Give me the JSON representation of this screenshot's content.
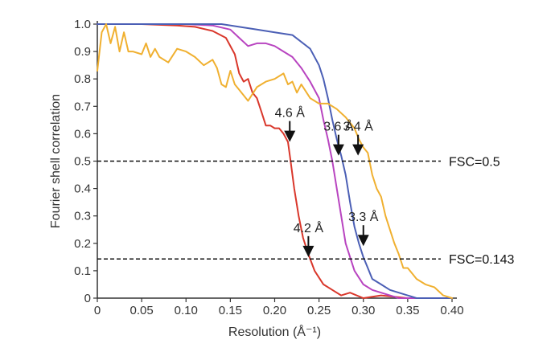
{
  "chart_data": {
    "type": "line",
    "xlabel": "Resolution (Å⁻¹)",
    "ylabel": "Fourier shell correlation",
    "xlim": [
      0,
      0.4
    ],
    "ylim": [
      0,
      1.0
    ],
    "x_ticks": [
      "0",
      "0.05",
      "0.10",
      "0.15",
      "0.20",
      "0.25",
      "0.30",
      "0.35",
      "0.40"
    ],
    "y_ticks": [
      "0",
      "0.1",
      "0.2",
      "0.3",
      "0.4",
      "0.5",
      "0.6",
      "0.7",
      "0.8",
      "0.9",
      "1.0"
    ],
    "grid": false,
    "legend": "none",
    "series": [
      {
        "color": "#d9372b",
        "points": [
          [
            0,
            1.0
          ],
          [
            0.05,
            1.0
          ],
          [
            0.09,
            0.995
          ],
          [
            0.11,
            0.99
          ],
          [
            0.13,
            0.975
          ],
          [
            0.145,
            0.95
          ],
          [
            0.155,
            0.89
          ],
          [
            0.16,
            0.82
          ],
          [
            0.165,
            0.79
          ],
          [
            0.17,
            0.8
          ],
          [
            0.175,
            0.75
          ],
          [
            0.18,
            0.73
          ],
          [
            0.185,
            0.68
          ],
          [
            0.19,
            0.63
          ],
          [
            0.195,
            0.63
          ],
          [
            0.2,
            0.62
          ],
          [
            0.205,
            0.62
          ],
          [
            0.21,
            0.6
          ],
          [
            0.215,
            0.57
          ],
          [
            0.218,
            0.5
          ],
          [
            0.222,
            0.4
          ],
          [
            0.227,
            0.3
          ],
          [
            0.232,
            0.22
          ],
          [
            0.238,
            0.16
          ],
          [
            0.245,
            0.1
          ],
          [
            0.255,
            0.05
          ],
          [
            0.265,
            0.03
          ],
          [
            0.275,
            0.01
          ],
          [
            0.285,
            0.02
          ],
          [
            0.3,
            0.0
          ],
          [
            0.32,
            0.01
          ],
          [
            0.35,
            0.0
          ],
          [
            0.4,
            0.0
          ]
        ]
      },
      {
        "color": "#b844c0",
        "points": [
          [
            0,
            1.0
          ],
          [
            0.05,
            1.0
          ],
          [
            0.1,
            1.0
          ],
          [
            0.13,
            0.995
          ],
          [
            0.15,
            0.98
          ],
          [
            0.16,
            0.95
          ],
          [
            0.17,
            0.92
          ],
          [
            0.18,
            0.93
          ],
          [
            0.19,
            0.93
          ],
          [
            0.2,
            0.92
          ],
          [
            0.21,
            0.9
          ],
          [
            0.22,
            0.88
          ],
          [
            0.23,
            0.84
          ],
          [
            0.24,
            0.79
          ],
          [
            0.25,
            0.73
          ],
          [
            0.255,
            0.65
          ],
          [
            0.26,
            0.58
          ],
          [
            0.265,
            0.5
          ],
          [
            0.27,
            0.4
          ],
          [
            0.275,
            0.3
          ],
          [
            0.28,
            0.2
          ],
          [
            0.285,
            0.15
          ],
          [
            0.29,
            0.1
          ],
          [
            0.3,
            0.05
          ],
          [
            0.31,
            0.03
          ],
          [
            0.32,
            0.02
          ],
          [
            0.34,
            0.0
          ],
          [
            0.4,
            0.0
          ]
        ]
      },
      {
        "color": "#4b5fb5",
        "points": [
          [
            0,
            1.0
          ],
          [
            0.05,
            1.0
          ],
          [
            0.1,
            1.0
          ],
          [
            0.14,
            1.0
          ],
          [
            0.16,
            0.99
          ],
          [
            0.18,
            0.98
          ],
          [
            0.2,
            0.97
          ],
          [
            0.22,
            0.96
          ],
          [
            0.24,
            0.91
          ],
          [
            0.25,
            0.85
          ],
          [
            0.255,
            0.8
          ],
          [
            0.26,
            0.73
          ],
          [
            0.265,
            0.65
          ],
          [
            0.27,
            0.58
          ],
          [
            0.275,
            0.52
          ],
          [
            0.28,
            0.45
          ],
          [
            0.285,
            0.35
          ],
          [
            0.29,
            0.26
          ],
          [
            0.295,
            0.2
          ],
          [
            0.3,
            0.15
          ],
          [
            0.305,
            0.11
          ],
          [
            0.31,
            0.07
          ],
          [
            0.32,
            0.05
          ],
          [
            0.33,
            0.03
          ],
          [
            0.34,
            0.02
          ],
          [
            0.36,
            0.0
          ],
          [
            0.4,
            0.0
          ]
        ]
      },
      {
        "color": "#f0b030",
        "points": [
          [
            0,
            0.83
          ],
          [
            0.005,
            0.97
          ],
          [
            0.01,
            1.0
          ],
          [
            0.015,
            0.93
          ],
          [
            0.02,
            0.99
          ],
          [
            0.025,
            0.9
          ],
          [
            0.03,
            0.97
          ],
          [
            0.035,
            0.9
          ],
          [
            0.04,
            0.9
          ],
          [
            0.05,
            0.89
          ],
          [
            0.055,
            0.93
          ],
          [
            0.06,
            0.88
          ],
          [
            0.065,
            0.91
          ],
          [
            0.07,
            0.88
          ],
          [
            0.08,
            0.86
          ],
          [
            0.09,
            0.91
          ],
          [
            0.1,
            0.9
          ],
          [
            0.11,
            0.88
          ],
          [
            0.12,
            0.85
          ],
          [
            0.13,
            0.87
          ],
          [
            0.135,
            0.84
          ],
          [
            0.14,
            0.78
          ],
          [
            0.145,
            0.77
          ],
          [
            0.15,
            0.83
          ],
          [
            0.155,
            0.78
          ],
          [
            0.16,
            0.76
          ],
          [
            0.17,
            0.72
          ],
          [
            0.18,
            0.77
          ],
          [
            0.19,
            0.79
          ],
          [
            0.2,
            0.8
          ],
          [
            0.21,
            0.82
          ],
          [
            0.215,
            0.78
          ],
          [
            0.22,
            0.79
          ],
          [
            0.225,
            0.75
          ],
          [
            0.23,
            0.78
          ],
          [
            0.24,
            0.73
          ],
          [
            0.25,
            0.71
          ],
          [
            0.26,
            0.71
          ],
          [
            0.27,
            0.69
          ],
          [
            0.28,
            0.66
          ],
          [
            0.29,
            0.62
          ],
          [
            0.295,
            0.58
          ],
          [
            0.3,
            0.55
          ],
          [
            0.305,
            0.53
          ],
          [
            0.31,
            0.45
          ],
          [
            0.315,
            0.4
          ],
          [
            0.32,
            0.37
          ],
          [
            0.325,
            0.3
          ],
          [
            0.33,
            0.25
          ],
          [
            0.335,
            0.2
          ],
          [
            0.34,
            0.16
          ],
          [
            0.345,
            0.11
          ],
          [
            0.35,
            0.11
          ],
          [
            0.355,
            0.09
          ],
          [
            0.36,
            0.07
          ],
          [
            0.37,
            0.05
          ],
          [
            0.38,
            0.04
          ],
          [
            0.39,
            0.01
          ],
          [
            0.4,
            0.0
          ]
        ]
      }
    ],
    "reference_lines": [
      {
        "y": 0.5,
        "label": "FSC=0.5"
      },
      {
        "y": 0.143,
        "label": "FSC=0.143"
      }
    ],
    "annotations": [
      {
        "text": "4.6 Å",
        "x": 0.217,
        "y": 0.57
      },
      {
        "text": "3.6 Å",
        "x": 0.272,
        "y": 0.52
      },
      {
        "text": "3.4 Å",
        "x": 0.294,
        "y": 0.52
      },
      {
        "text": "4.2 Å",
        "x": 0.238,
        "y": 0.15
      },
      {
        "text": "3.3 Å",
        "x": 0.3,
        "y": 0.19
      }
    ]
  }
}
